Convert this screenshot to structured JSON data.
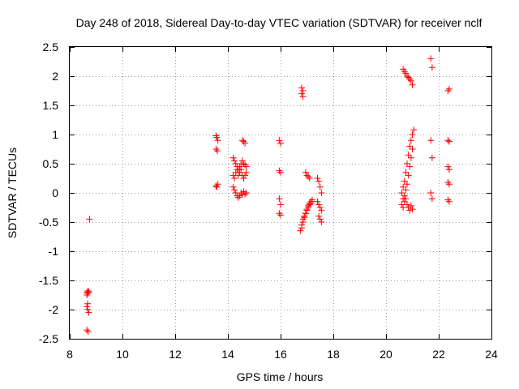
{
  "chart_data": {
    "type": "scatter",
    "title": "Day 248 of 2018, Sidereal Day-to-day VTEC variation (SDTVAR) for receiver nclf",
    "xlabel": "GPS time / hours",
    "ylabel": "SDTVAR / TECUs",
    "xlim": [
      8,
      24
    ],
    "ylim": [
      -2.5,
      2.5
    ],
    "xticks": [
      8,
      10,
      12,
      14,
      16,
      18,
      20,
      22,
      24
    ],
    "xtick_labels": [
      "8",
      "10",
      "12",
      "14",
      "16",
      "18",
      "20",
      "22",
      "24"
    ],
    "yticks": [
      2.5,
      2,
      1.5,
      1,
      0.5,
      0,
      -0.5,
      -1,
      -1.5,
      -2,
      -2.5
    ],
    "ytick_labels": [
      "2.5",
      "2",
      "1.5",
      "1",
      "0.5",
      "0",
      "-0.5",
      "-1",
      "-1.5",
      "-2",
      "-2.5"
    ],
    "grid": true,
    "marker": "plus",
    "marker_color": "#ff0000",
    "series": [
      {
        "name": "SDTVAR",
        "x": [
          8.75,
          8.65,
          8.68,
          8.7,
          8.73,
          8.65,
          8.68,
          8.72,
          8.65,
          8.7,
          8.65,
          8.68,
          13.55,
          13.58,
          13.62,
          13.55,
          13.6,
          13.55,
          13.58,
          13.62,
          14.2,
          14.25,
          14.3,
          14.35,
          14.4,
          14.45,
          14.5,
          14.55,
          14.6,
          14.65,
          14.7,
          14.2,
          14.25,
          14.3,
          14.35,
          14.4,
          14.45,
          14.5,
          14.55,
          14.6,
          14.65,
          14.7,
          14.2,
          14.25,
          14.3,
          14.35,
          14.4,
          14.45,
          14.5,
          14.55,
          14.6,
          14.65,
          14.7,
          14.55,
          14.6,
          14.65,
          15.95,
          16.0,
          15.95,
          16.0,
          15.95,
          16.0,
          15.95,
          16.0,
          16.8,
          16.85,
          16.8,
          16.85,
          16.75,
          16.8,
          16.85,
          16.9,
          16.95,
          17.0,
          17.05,
          17.1,
          17.15,
          17.2,
          16.8,
          16.85,
          16.9,
          16.95,
          17.0,
          17.05,
          17.1,
          17.15,
          17.2,
          16.95,
          17.0,
          17.05,
          17.1,
          17.4,
          17.45,
          17.5,
          17.55,
          17.4,
          17.45,
          17.5,
          17.55,
          17.45,
          17.5,
          17.55,
          20.6,
          20.65,
          20.7,
          20.75,
          20.8,
          20.85,
          20.9,
          20.95,
          21.0,
          21.05,
          20.65,
          20.7,
          20.75,
          20.8,
          20.85,
          20.9,
          20.95,
          21.0,
          20.6,
          20.65,
          20.7,
          20.75,
          20.8,
          20.85,
          20.9,
          20.95,
          21.0,
          20.65,
          20.7,
          20.75,
          20.8,
          20.85,
          20.9,
          20.95,
          21.0,
          21.7,
          21.75,
          21.7,
          21.75,
          21.7,
          21.75,
          22.35,
          22.4,
          22.35,
          22.4,
          22.35,
          22.4,
          22.35,
          22.4,
          22.35,
          22.4
        ],
        "y": [
          -0.45,
          -1.7,
          -1.72,
          -1.68,
          -1.7,
          -1.95,
          -2.0,
          -2.05,
          -2.35,
          -2.38,
          -1.75,
          -1.9,
          0.98,
          0.95,
          0.9,
          0.75,
          0.72,
          0.12,
          0.1,
          0.15,
          0.6,
          0.55,
          0.5,
          0.45,
          0.4,
          0.45,
          0.5,
          0.55,
          0.5,
          0.48,
          0.45,
          0.1,
          0.05,
          0.0,
          -0.05,
          -0.08,
          -0.05,
          0.0,
          -0.03,
          0.02,
          -0.02,
          0.0,
          0.3,
          0.25,
          0.35,
          0.4,
          0.3,
          0.35,
          0.4,
          0.3,
          0.25,
          0.3,
          0.35,
          0.9,
          0.88,
          0.85,
          0.9,
          0.85,
          0.38,
          0.35,
          -0.1,
          -0.2,
          -0.35,
          -0.38,
          1.8,
          1.75,
          1.7,
          1.65,
          -0.65,
          -0.55,
          -0.45,
          -0.4,
          -0.35,
          -0.3,
          -0.25,
          -0.2,
          -0.18,
          -0.15,
          -0.6,
          -0.5,
          -0.42,
          -0.35,
          -0.28,
          -0.22,
          -0.18,
          -0.15,
          -0.12,
          0.35,
          0.3,
          0.28,
          0.25,
          0.25,
          0.2,
          0.1,
          0.0,
          -0.15,
          -0.2,
          -0.25,
          -0.3,
          -0.4,
          -0.45,
          -0.5,
          0.0,
          0.1,
          0.2,
          0.35,
          0.5,
          0.65,
          0.8,
          0.9,
          1.0,
          1.08,
          -0.1,
          -0.05,
          0.05,
          0.15,
          0.3,
          0.45,
          0.6,
          0.75,
          -0.2,
          -0.25,
          -0.15,
          -0.1,
          -0.2,
          -0.25,
          -0.3,
          -0.22,
          -0.28,
          2.12,
          2.08,
          2.05,
          2.0,
          1.98,
          1.95,
          1.92,
          1.85,
          2.3,
          2.15,
          0.9,
          0.6,
          0.0,
          -0.1,
          1.75,
          1.78,
          0.9,
          0.88,
          0.45,
          0.4,
          0.18,
          0.15,
          -0.12,
          -0.15
        ]
      }
    ]
  }
}
